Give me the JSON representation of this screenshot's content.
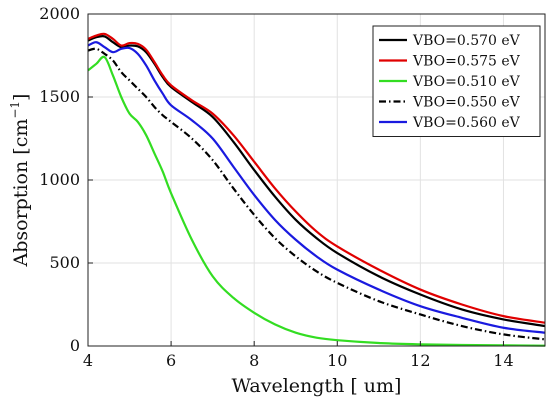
{
  "chart_data": {
    "type": "line",
    "xlabel": "Wavelength [ um]",
    "ylabel": "Absorption [cm",
    "ylabel_sup": "−1",
    "ylabel_close": "]",
    "xlim": [
      4,
      15
    ],
    "ylim": [
      0,
      2000
    ],
    "xticks": [
      4,
      6,
      8,
      10,
      12,
      14
    ],
    "yticks": [
      0,
      500,
      1000,
      1500,
      2000
    ],
    "xtick_labels": [
      "4",
      "6",
      "8",
      "10",
      "12",
      "14"
    ],
    "ytick_labels": [
      "0",
      "500",
      "1000",
      "1500",
      "2000"
    ],
    "grid": true,
    "legend_position": "top-right",
    "series": [
      {
        "name": "VBO=0.570 eV",
        "color": "#000000",
        "dash": "solid",
        "x": [
          4,
          4.2,
          4.4,
          4.6,
          4.8,
          5,
          5.2,
          5.4,
          5.6,
          5.8,
          6,
          6.5,
          7,
          7.5,
          8,
          8.5,
          9,
          9.5,
          10,
          11,
          12,
          13,
          14,
          15
        ],
        "y": [
          1840,
          1860,
          1865,
          1830,
          1800,
          1810,
          1805,
          1770,
          1700,
          1620,
          1560,
          1470,
          1380,
          1230,
          1060,
          900,
          760,
          650,
          560,
          420,
          310,
          220,
          160,
          120
        ]
      },
      {
        "name": "VBO=0.575 eV",
        "color": "#e00000",
        "dash": "solid",
        "x": [
          4,
          4.2,
          4.4,
          4.6,
          4.8,
          5,
          5.2,
          5.4,
          5.6,
          5.8,
          6,
          6.5,
          7,
          7.5,
          8,
          8.5,
          9,
          9.5,
          10,
          11,
          12,
          13,
          14,
          15
        ],
        "y": [
          1850,
          1870,
          1880,
          1850,
          1810,
          1825,
          1820,
          1785,
          1710,
          1630,
          1570,
          1480,
          1400,
          1270,
          1110,
          950,
          810,
          690,
          600,
          460,
          340,
          250,
          180,
          140
        ]
      },
      {
        "name": "VBO=0.510 eV",
        "color": "#33dd22",
        "dash": "solid",
        "x": [
          4,
          4.2,
          4.4,
          4.6,
          4.8,
          5,
          5.2,
          5.4,
          5.6,
          5.8,
          6,
          6.5,
          7,
          7.5,
          8,
          8.5,
          9,
          9.5,
          10,
          11,
          12,
          13,
          14,
          15
        ],
        "y": [
          1660,
          1700,
          1740,
          1630,
          1500,
          1400,
          1350,
          1270,
          1160,
          1050,
          920,
          640,
          420,
          290,
          200,
          130,
          80,
          50,
          35,
          18,
          10,
          6,
          4,
          2
        ]
      },
      {
        "name": "VBO=0.550 eV",
        "color": "#000000",
        "dash": "dashdot",
        "x": [
          4,
          4.2,
          4.4,
          4.6,
          4.8,
          5,
          5.2,
          5.4,
          5.6,
          5.8,
          6,
          6.5,
          7,
          7.5,
          8,
          8.5,
          9,
          9.5,
          10,
          11,
          12,
          13,
          14,
          15
        ],
        "y": [
          1780,
          1790,
          1760,
          1720,
          1650,
          1600,
          1550,
          1500,
          1440,
          1390,
          1350,
          1250,
          1120,
          950,
          790,
          650,
          540,
          450,
          380,
          270,
          190,
          120,
          70,
          40
        ]
      },
      {
        "name": "VBO=0.560 eV",
        "color": "#1a1adf",
        "dash": "solid",
        "x": [
          4,
          4.2,
          4.4,
          4.6,
          4.8,
          5,
          5.2,
          5.4,
          5.6,
          5.8,
          6,
          6.5,
          7,
          7.5,
          8,
          8.5,
          9,
          9.5,
          10,
          11,
          12,
          13,
          14,
          15
        ],
        "y": [
          1810,
          1830,
          1800,
          1770,
          1790,
          1795,
          1760,
          1690,
          1600,
          1520,
          1450,
          1360,
          1250,
          1080,
          910,
          760,
          640,
          540,
          460,
          340,
          240,
          170,
          110,
          80
        ]
      }
    ]
  }
}
